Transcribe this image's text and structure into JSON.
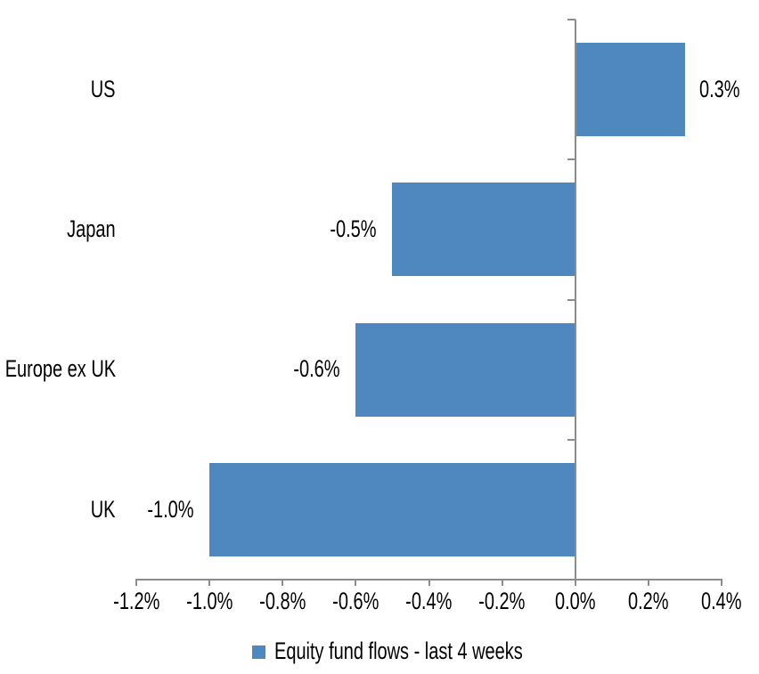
{
  "chart_data": {
    "type": "bar",
    "orientation": "horizontal",
    "title": "",
    "categories": [
      "US",
      "Japan",
      "Europe ex UK",
      "UK"
    ],
    "series": [
      {
        "name": "Equity fund flows - last 4 weeks",
        "values": [
          0.3,
          -0.5,
          -0.6,
          -1.0
        ],
        "value_labels": [
          "0.3%",
          "-0.5%",
          "-0.6%",
          "-1.0%"
        ],
        "color": "#4E88BE"
      }
    ],
    "xlabel": "",
    "ylabel": "",
    "xlim": [
      -1.2,
      0.4
    ],
    "x_ticks": {
      "values": [
        -1.2,
        -1.0,
        -0.8,
        -0.6,
        -0.4,
        -0.2,
        0,
        0.2,
        0.4
      ],
      "labels": [
        "-1.2%",
        "-1.0%",
        "-0.8%",
        "-0.6%",
        "-0.4%",
        "-0.2%",
        "0.0%",
        "0.2%",
        "0.4%"
      ]
    },
    "grid": false,
    "legend": {
      "position": "bottom",
      "entries": [
        {
          "label": "Equity fund flows - last 4 weeks",
          "swatch_color": "#4E88BE"
        }
      ]
    },
    "axis_color": "#8C8C8C",
    "text_color": "#000000",
    "background": "#FFFFFF"
  }
}
